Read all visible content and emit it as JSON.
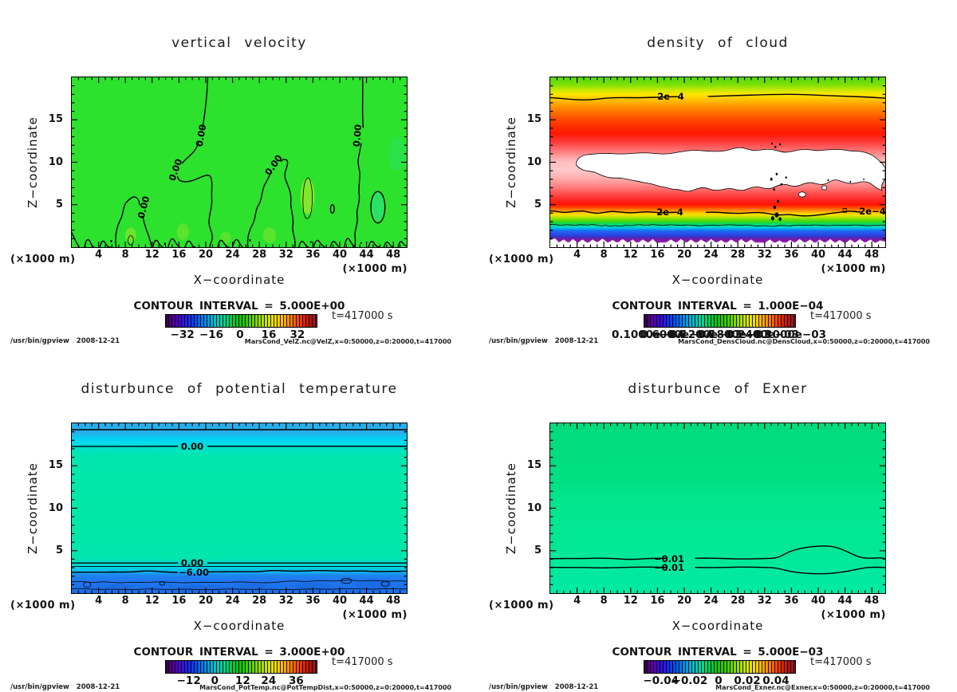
{
  "page": {
    "background": "#ffffff"
  },
  "panels": [
    {
      "id": "vertical-velocity",
      "title": "vertical velocity",
      "y_label": "Z−coordinate",
      "x_label": "X−coordinate",
      "unit_left": "(×1000 m)",
      "unit_right": "(×1000 m)",
      "x_ticks": [
        4,
        8,
        12,
        16,
        20,
        24,
        28,
        32,
        36,
        40,
        44,
        48
      ],
      "y_ticks": [
        5,
        10,
        15
      ],
      "contour_interval_label": "CONTOUR INTERVAL = 5.000E+00",
      "time_label": "t=417000 s",
      "footer_left": "/usr/bin/gpview   2008-12-21",
      "footer_right": "MarsCond_VelZ.nc@VelZ,x=0:50000,z=0:20000,t=417000",
      "colorbar_labels": [
        {
          "text": "−32",
          "f": 0.115
        },
        {
          "text": "−16",
          "f": 0.307
        },
        {
          "text": "0",
          "f": 0.497
        },
        {
          "text": "16",
          "f": 0.688
        },
        {
          "text": "32",
          "f": 0.878
        }
      ],
      "contour_labels": [
        {
          "text": "0.00"
        },
        {
          "text": "0.00"
        },
        {
          "text": "0.00"
        },
        {
          "text": "0.00"
        },
        {
          "text": "0.00"
        }
      ]
    },
    {
      "id": "density-of-cloud",
      "title": "density of cloud",
      "y_label": "Z−coordinate",
      "x_label": "X−coordinate",
      "unit_left": "(×1000 m)",
      "unit_right": "(×1000 m)",
      "x_ticks": [
        4,
        8,
        12,
        16,
        20,
        24,
        28,
        32,
        36,
        40,
        44,
        48
      ],
      "y_ticks": [
        5,
        10,
        15
      ],
      "contour_interval_label": "CONTOUR INTERVAL = 1.000E−04",
      "time_label": "t=417000 s",
      "footer_left": "/usr/bin/gpview   2008-12-21",
      "footer_right": "MarsCond_DensCloud.nc@DensCloud,x=0:50000,z=0:20000,t=417000",
      "colorbar_labels": [
        {
          "text": "0.1000e−04",
          "f": 0.03
        },
        {
          "text": "0.6000e−04",
          "f": 0.22
        },
        {
          "text": "0.1200e−03",
          "f": 0.41
        },
        {
          "text": "0.1800e−03",
          "f": 0.6
        },
        {
          "text": "0.2400e−03",
          "f": 0.79
        },
        {
          "text": "0.3000e−03",
          "f": 0.97
        }
      ],
      "contour_labels": [
        {
          "text": "2e−4"
        },
        {
          "text": "2e−4"
        },
        {
          "text": "2e−4"
        }
      ]
    },
    {
      "id": "potential-temperature-disturbance",
      "title": "disturbunce of potential temperature",
      "y_label": "Z−coordinate",
      "x_label": "X−coordinate",
      "unit_left": "(×1000 m)",
      "unit_right": "(×1000 m)",
      "x_ticks": [
        4,
        8,
        12,
        16,
        20,
        24,
        28,
        32,
        36,
        40,
        44,
        48
      ],
      "y_ticks": [
        5,
        10,
        15
      ],
      "contour_interval_label": "CONTOUR INTERVAL = 3.000E+00",
      "time_label": "t=417000 s",
      "footer_left": "/usr/bin/gpview   2008-12-21",
      "footer_right": "MarsCond_PotTemp.nc@PotTempDist,x=0:50000,z=0:20000,t=417000",
      "colorbar_labels": [
        {
          "text": "−12",
          "f": 0.157
        },
        {
          "text": "0",
          "f": 0.33
        },
        {
          "text": "12",
          "f": 0.515
        },
        {
          "text": "24",
          "f": 0.687
        },
        {
          "text": "36",
          "f": 0.87
        }
      ],
      "contour_labels": [
        {
          "text": "0.00"
        },
        {
          "text": "0.00"
        },
        {
          "text": "−6.00"
        }
      ]
    },
    {
      "id": "exner-disturbance",
      "title": "disturbunce of Exner",
      "y_label": "Z−coordinate",
      "x_label": "X−coordinate",
      "unit_left": "(×1000 m)",
      "unit_right": "(×1000 m)",
      "x_ticks": [
        4,
        8,
        12,
        16,
        20,
        24,
        28,
        32,
        36,
        40,
        44,
        48
      ],
      "y_ticks": [
        5,
        10,
        15
      ],
      "contour_interval_label": "CONTOUR INTERVAL = 5.000E−03",
      "time_label": "t=417000 s",
      "footer_left": "/usr/bin/gpview   2008-12-21",
      "footer_right": "MarsCond_Exner.nc@Exner,x=0:50000,z=0:20000,t=417000",
      "colorbar_labels": [
        {
          "text": "−0.04",
          "f": 0.115
        },
        {
          "text": "−0.02",
          "f": 0.307
        },
        {
          "text": "0",
          "f": 0.497
        },
        {
          "text": "0.02",
          "f": 0.688
        },
        {
          "text": "0.04",
          "f": 0.878
        }
      ],
      "contour_labels": [
        {
          "text": "−0.01"
        },
        {
          "text": "−0.01"
        }
      ]
    }
  ],
  "chart_data": [
    {
      "type": "contour",
      "title": "vertical velocity",
      "xlabel": "X−coordinate (×1000 m)",
      "ylabel": "Z−coordinate (×1000 m)",
      "x_range": [
        0,
        50
      ],
      "z_range": [
        0,
        20
      ],
      "contour_interval": 5.0,
      "colorbar_ticks": [
        -32,
        -16,
        0,
        16,
        32
      ],
      "time": 417000,
      "labeled_contours": [
        {
          "value": 0.0,
          "style": "solid",
          "count": 5
        }
      ],
      "field_summary": "near-zero field shaded uniform green; wavy 0.00 contours descend from top near x=20 and x=43.5, closed 0.00 loops near (x=9,z=5) and (x=31,z=10), dashed negative oval near (x=45.5,z=4.5), many small contour bumps along the bottom boundary"
    },
    {
      "type": "contour",
      "title": "density of cloud",
      "xlabel": "X−coordinate (×1000 m)",
      "ylabel": "Z−coordinate (×1000 m)",
      "x_range": [
        0,
        50
      ],
      "z_range": [
        0,
        20
      ],
      "contour_interval": 0.0001,
      "colorbar_ticks": [
        1e-05,
        6e-05,
        0.00012,
        0.00018,
        0.00024,
        0.0003
      ],
      "time": 417000,
      "labeled_contours": [
        {
          "value": 0.0002,
          "label": "2e−4",
          "z_locations": [
            17.6,
            4.1
          ]
        }
      ],
      "field_summary": "horizontally stratified rainbow field: green at z≈20, yellow/orange z≈17, red z≈13-15, pink toward saturated white maximum band z≈7-11.5 (white blob spanning x≈4-50), red again below, thin yellow-green band z≈3-4, cyan-blue z≈2-2.5, purple z≈1-1.5, white below z≈0.8"
    },
    {
      "type": "contour",
      "title": "disturbunce of potential temperature",
      "xlabel": "X−coordinate (×1000 m)",
      "ylabel": "Z−coordinate (×1000 m)",
      "x_range": [
        0,
        50
      ],
      "z_range": [
        0,
        20
      ],
      "contour_interval": 3.0,
      "colorbar_ticks": [
        -12,
        0,
        12,
        24,
        36
      ],
      "time": 417000,
      "labeled_contours": [
        {
          "value": 0.0,
          "style": "solid",
          "z_locations": [
            17.3,
            3.55
          ]
        },
        {
          "value": -6.0,
          "style": "dashed",
          "z_location": 2.45
        }
      ],
      "field_summary": "flat horizontal layers: blue band at top (z>19.3, dashed contour), cyan to z≈17.3 (solid 0.00), uniform teal-green interior, solid 0.00 at z≈3.55, cyan band, dashed −6.00 at z≈2.45, blue layer with weak dashed squiggly contours below z≈2.3"
    },
    {
      "type": "contour",
      "title": "disturbunce of Exner",
      "xlabel": "X−coordinate (×1000 m)",
      "ylabel": "Z−coordinate (×1000 m)",
      "x_range": [
        0,
        50
      ],
      "z_range": [
        0,
        20
      ],
      "contour_interval": 0.005,
      "colorbar_ticks": [
        -0.04,
        -0.02,
        0,
        0.02,
        0.04
      ],
      "time": 417000,
      "labeled_contours": [
        {
          "value": -0.01,
          "style": "dashed",
          "z_locations": [
            4.1,
            3.0
          ]
        }
      ],
      "field_summary": "nearly uniform green field; two dashed −0.01 contours: upper near z≈4.1 bulging up to z≈5.4 around x≈38-44, lower near z≈3.0 dipping to z≈2.5 around x≈36-44"
    }
  ]
}
